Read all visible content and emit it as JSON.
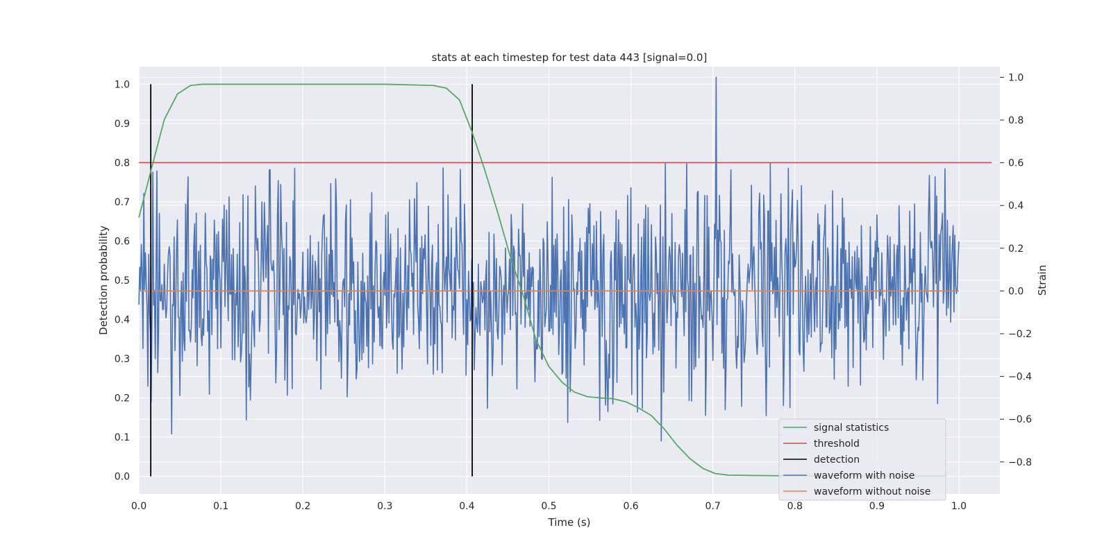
{
  "chart_data": {
    "type": "line",
    "title": "stats at each timestep for test data 443 [signal=0.0]",
    "xlabel": "Time (s)",
    "ylabel": "Detection probability",
    "y2label": "Strain",
    "xlim": [
      0.0,
      1.05
    ],
    "ylim": [
      -0.045,
      1.045
    ],
    "y2lim": [
      -0.95,
      1.05
    ],
    "x_ticks": [
      0.0,
      0.1,
      0.2,
      0.3,
      0.4,
      0.5,
      0.6,
      0.7,
      0.8,
      0.9,
      1.0
    ],
    "x_tick_labels": [
      "0.0",
      "0.1",
      "0.2",
      "0.3",
      "0.4",
      "0.5",
      "0.6",
      "0.7",
      "0.8",
      "0.9",
      "1.0"
    ],
    "y_ticks": [
      0.0,
      0.1,
      0.2,
      0.3,
      0.4,
      0.5,
      0.6,
      0.7,
      0.8,
      0.9,
      1.0
    ],
    "y_tick_labels": [
      "0.0",
      "0.1",
      "0.2",
      "0.3",
      "0.4",
      "0.5",
      "0.6",
      "0.7",
      "0.8",
      "0.9",
      "1.0"
    ],
    "y2_ticks": [
      -0.8,
      -0.6,
      -0.4,
      -0.2,
      0.0,
      0.2,
      0.4,
      0.6,
      0.8,
      1.0
    ],
    "y2_tick_labels": [
      "−0.8",
      "−0.6",
      "−0.4",
      "−0.2",
      "0.0",
      "0.2",
      "0.4",
      "0.6",
      "0.8",
      "1.0"
    ],
    "grid": true,
    "legend_position": "lower-right",
    "series": [
      {
        "name": "signal statistics",
        "axis": "left",
        "color": "#55a868",
        "x": [
          0.0,
          0.016,
          0.031,
          0.047,
          0.063,
          0.078,
          0.094,
          0.2,
          0.3,
          0.359,
          0.375,
          0.391,
          0.406,
          0.422,
          0.438,
          0.453,
          0.469,
          0.484,
          0.5,
          0.516,
          0.531,
          0.547,
          0.563,
          0.578,
          0.594,
          0.609,
          0.625,
          0.641,
          0.656,
          0.672,
          0.688,
          0.703,
          0.719,
          0.75,
          0.8,
          0.9,
          0.984
        ],
        "y": [
          0.66,
          0.79,
          0.91,
          0.975,
          0.997,
          1.0,
          1.0,
          1.0,
          1.0,
          0.997,
          0.99,
          0.96,
          0.88,
          0.78,
          0.67,
          0.56,
          0.46,
          0.35,
          0.28,
          0.24,
          0.215,
          0.203,
          0.2,
          0.198,
          0.19,
          0.175,
          0.155,
          0.12,
          0.08,
          0.045,
          0.02,
          0.007,
          0.003,
          0.002,
          0.001,
          0.001,
          0.001
        ]
      },
      {
        "name": "threshold",
        "axis": "left",
        "color": "#c44e52",
        "x": [
          0.0,
          1.04
        ],
        "y": [
          0.8,
          0.8
        ]
      },
      {
        "name": "detection",
        "axis": "left",
        "color": "#000000",
        "x": [
          0.0145,
          0.4065
        ],
        "y": [
          0.0,
          1.0
        ]
      },
      {
        "name": "waveform with noise",
        "axis": "right",
        "color": "#4c72b0",
        "x_start": 0.0,
        "x_end": 1.0,
        "peak_time": 0.704,
        "peak_value": 1.0
      },
      {
        "name": "waveform without noise",
        "axis": "right",
        "color": "#dd8452",
        "x": [
          0.0,
          1.0
        ],
        "y": [
          0.0,
          0.0
        ]
      }
    ]
  },
  "legend": {
    "items": [
      {
        "label": "signal statistics",
        "color": "#55a868"
      },
      {
        "label": "threshold",
        "color": "#c44e52"
      },
      {
        "label": "detection",
        "color": "#000000"
      },
      {
        "label": "waveform with noise",
        "color": "#4c72b0"
      },
      {
        "label": "waveform without noise",
        "color": "#dd8452"
      }
    ]
  },
  "colors": {
    "plot_background": "#eaeaf2",
    "grid": "#ffffff",
    "text": "#262626"
  }
}
